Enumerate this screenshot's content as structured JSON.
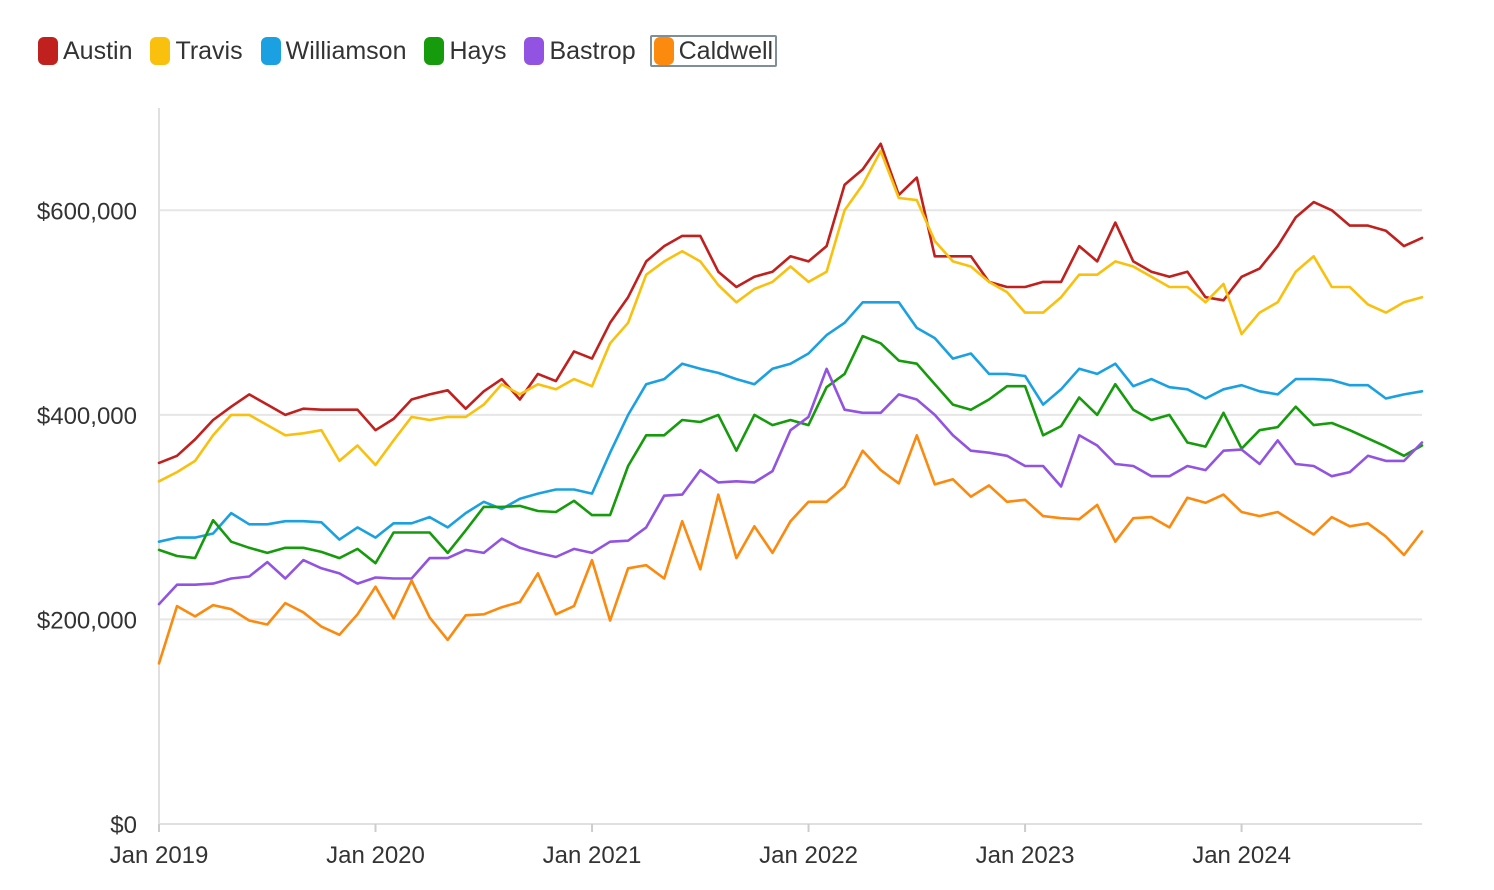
{
  "legend": {
    "items": [
      {
        "label": "Austin",
        "color": "#c0201e"
      },
      {
        "label": "Travis",
        "color": "#f9c10e"
      },
      {
        "label": "Williamson",
        "color": "#1ba1e2"
      },
      {
        "label": "Hays",
        "color": "#159b0b"
      },
      {
        "label": "Bastrop",
        "color": "#9353e2"
      },
      {
        "label": "Caldwell",
        "color": "#fb8a0e"
      }
    ],
    "focused": "Caldwell"
  },
  "chart_data": {
    "type": "line",
    "title": "",
    "xlabel": "",
    "ylabel": "",
    "x_start": "Jan 2019",
    "x_end": "Nov 2024",
    "x_frequency": "monthly",
    "x_ticks": [
      "Jan 2019",
      "Jan 2020",
      "Jan 2021",
      "Jan 2022",
      "Jan 2023",
      "Jan 2024"
    ],
    "y_ticks": [
      "$0",
      "$200,000",
      "$400,000",
      "$600,000"
    ],
    "y_tick_values": [
      0,
      200000,
      400000,
      600000
    ],
    "ylim": [
      0,
      700000
    ],
    "grid": "horizontal",
    "legend_position": "top-left",
    "series": [
      {
        "name": "Austin",
        "color": "#c0201e",
        "values": [
          353000,
          360000,
          376000,
          395000,
          408000,
          420000,
          410000,
          400000,
          406000,
          405000,
          405000,
          405000,
          385000,
          396000,
          415000,
          420000,
          424000,
          406000,
          423000,
          435000,
          415000,
          440000,
          433000,
          462000,
          455000,
          490000,
          515000,
          550000,
          565000,
          575000,
          575000,
          540000,
          525000,
          535000,
          540000,
          555000,
          550000,
          565000,
          625000,
          640000,
          665000,
          615000,
          632000,
          555000,
          555000,
          555000,
          530000,
          525000,
          525000,
          530000,
          530000,
          565000,
          550000,
          588000,
          550000,
          540000,
          535000,
          540000,
          515000,
          512000,
          535000,
          543000,
          565000,
          593000,
          608000,
          600000,
          585000,
          585000,
          580000,
          565000,
          573000
        ]
      },
      {
        "name": "Travis",
        "color": "#f9c10e",
        "values": [
          335000,
          344000,
          355000,
          380000,
          400000,
          400000,
          390000,
          380000,
          382000,
          385000,
          355000,
          370000,
          351000,
          375000,
          398000,
          395000,
          398000,
          398000,
          410000,
          430000,
          420000,
          430000,
          425000,
          435000,
          428000,
          470000,
          490000,
          537000,
          550000,
          560000,
          550000,
          527000,
          510000,
          523000,
          530000,
          545000,
          530000,
          540000,
          600000,
          625000,
          658000,
          612000,
          610000,
          570000,
          550000,
          545000,
          530000,
          520000,
          500000,
          500000,
          515000,
          537000,
          537000,
          550000,
          545000,
          535000,
          525000,
          525000,
          510000,
          528000,
          479000,
          500000,
          510000,
          540000,
          555000,
          525000,
          525000,
          508000,
          500000,
          510000,
          515000
        ]
      },
      {
        "name": "Williamson",
        "color": "#1ba1e2",
        "values": [
          276000,
          280000,
          280000,
          284000,
          304000,
          293000,
          293000,
          296000,
          296000,
          295000,
          278000,
          290000,
          280000,
          294000,
          294000,
          300000,
          290000,
          304000,
          315000,
          308000,
          318000,
          323000,
          327000,
          327000,
          323000,
          363000,
          400000,
          430000,
          435000,
          450000,
          445000,
          441000,
          435000,
          430000,
          445000,
          450000,
          460000,
          478000,
          490000,
          510000,
          510000,
          510000,
          485000,
          475000,
          455000,
          460000,
          440000,
          440000,
          438000,
          410000,
          425000,
          445000,
          440000,
          450000,
          428000,
          435000,
          427000,
          425000,
          416000,
          425000,
          429000,
          423000,
          420000,
          435000,
          435000,
          434000,
          429000,
          429000,
          416000,
          420000,
          423000
        ]
      },
      {
        "name": "Hays",
        "color": "#159b0b",
        "values": [
          268000,
          262000,
          260000,
          297000,
          276000,
          270000,
          265000,
          270000,
          270000,
          266000,
          260000,
          269000,
          255000,
          285000,
          285000,
          285000,
          265000,
          287000,
          310000,
          310000,
          311000,
          306000,
          305000,
          316000,
          302000,
          302000,
          350000,
          380000,
          380000,
          395000,
          393000,
          400000,
          365000,
          400000,
          390000,
          395000,
          390000,
          427000,
          440000,
          477000,
          470000,
          453000,
          450000,
          430000,
          410000,
          405000,
          415000,
          428000,
          428000,
          380000,
          389000,
          417000,
          400000,
          430000,
          405000,
          395000,
          400000,
          373000,
          369000,
          402000,
          367000,
          385000,
          388000,
          408000,
          390000,
          392000,
          385000,
          377000,
          369000,
          360000,
          370000
        ]
      },
      {
        "name": "Bastrop",
        "color": "#9353e2",
        "values": [
          215000,
          234000,
          234000,
          235000,
          240000,
          242000,
          256000,
          240000,
          258000,
          250000,
          245000,
          235000,
          241000,
          240000,
          240000,
          260000,
          260000,
          268000,
          265000,
          279000,
          270000,
          265000,
          261000,
          269000,
          265000,
          276000,
          277000,
          290000,
          321000,
          322000,
          346000,
          334000,
          335000,
          334000,
          345000,
          385000,
          398000,
          445000,
          405000,
          402000,
          402000,
          420000,
          415000,
          400000,
          380000,
          365000,
          363000,
          360000,
          350000,
          350000,
          330000,
          380000,
          370000,
          352000,
          350000,
          340000,
          340000,
          350000,
          346000,
          365000,
          366000,
          352000,
          375000,
          352000,
          350000,
          340000,
          344000,
          360000,
          355000,
          355000,
          373000
        ]
      },
      {
        "name": "Caldwell",
        "color": "#fb8a0e",
        "values": [
          157000,
          213000,
          203000,
          214000,
          210000,
          199000,
          195000,
          216000,
          207000,
          193000,
          185000,
          205000,
          232000,
          201000,
          238000,
          202000,
          180000,
          204000,
          205000,
          212000,
          217000,
          245000,
          205000,
          213000,
          258000,
          199000,
          250000,
          253000,
          240000,
          296000,
          249000,
          322000,
          260000,
          291000,
          265000,
          296000,
          315000,
          315000,
          330000,
          365000,
          346000,
          333000,
          380000,
          332000,
          337000,
          320000,
          331000,
          315000,
          317000,
          301000,
          299000,
          298000,
          312000,
          276000,
          299000,
          300000,
          290000,
          319000,
          314000,
          322000,
          305000,
          301000,
          305000,
          294000,
          283000,
          300000,
          291000,
          294000,
          281000,
          263000,
          286000
        ]
      }
    ]
  }
}
